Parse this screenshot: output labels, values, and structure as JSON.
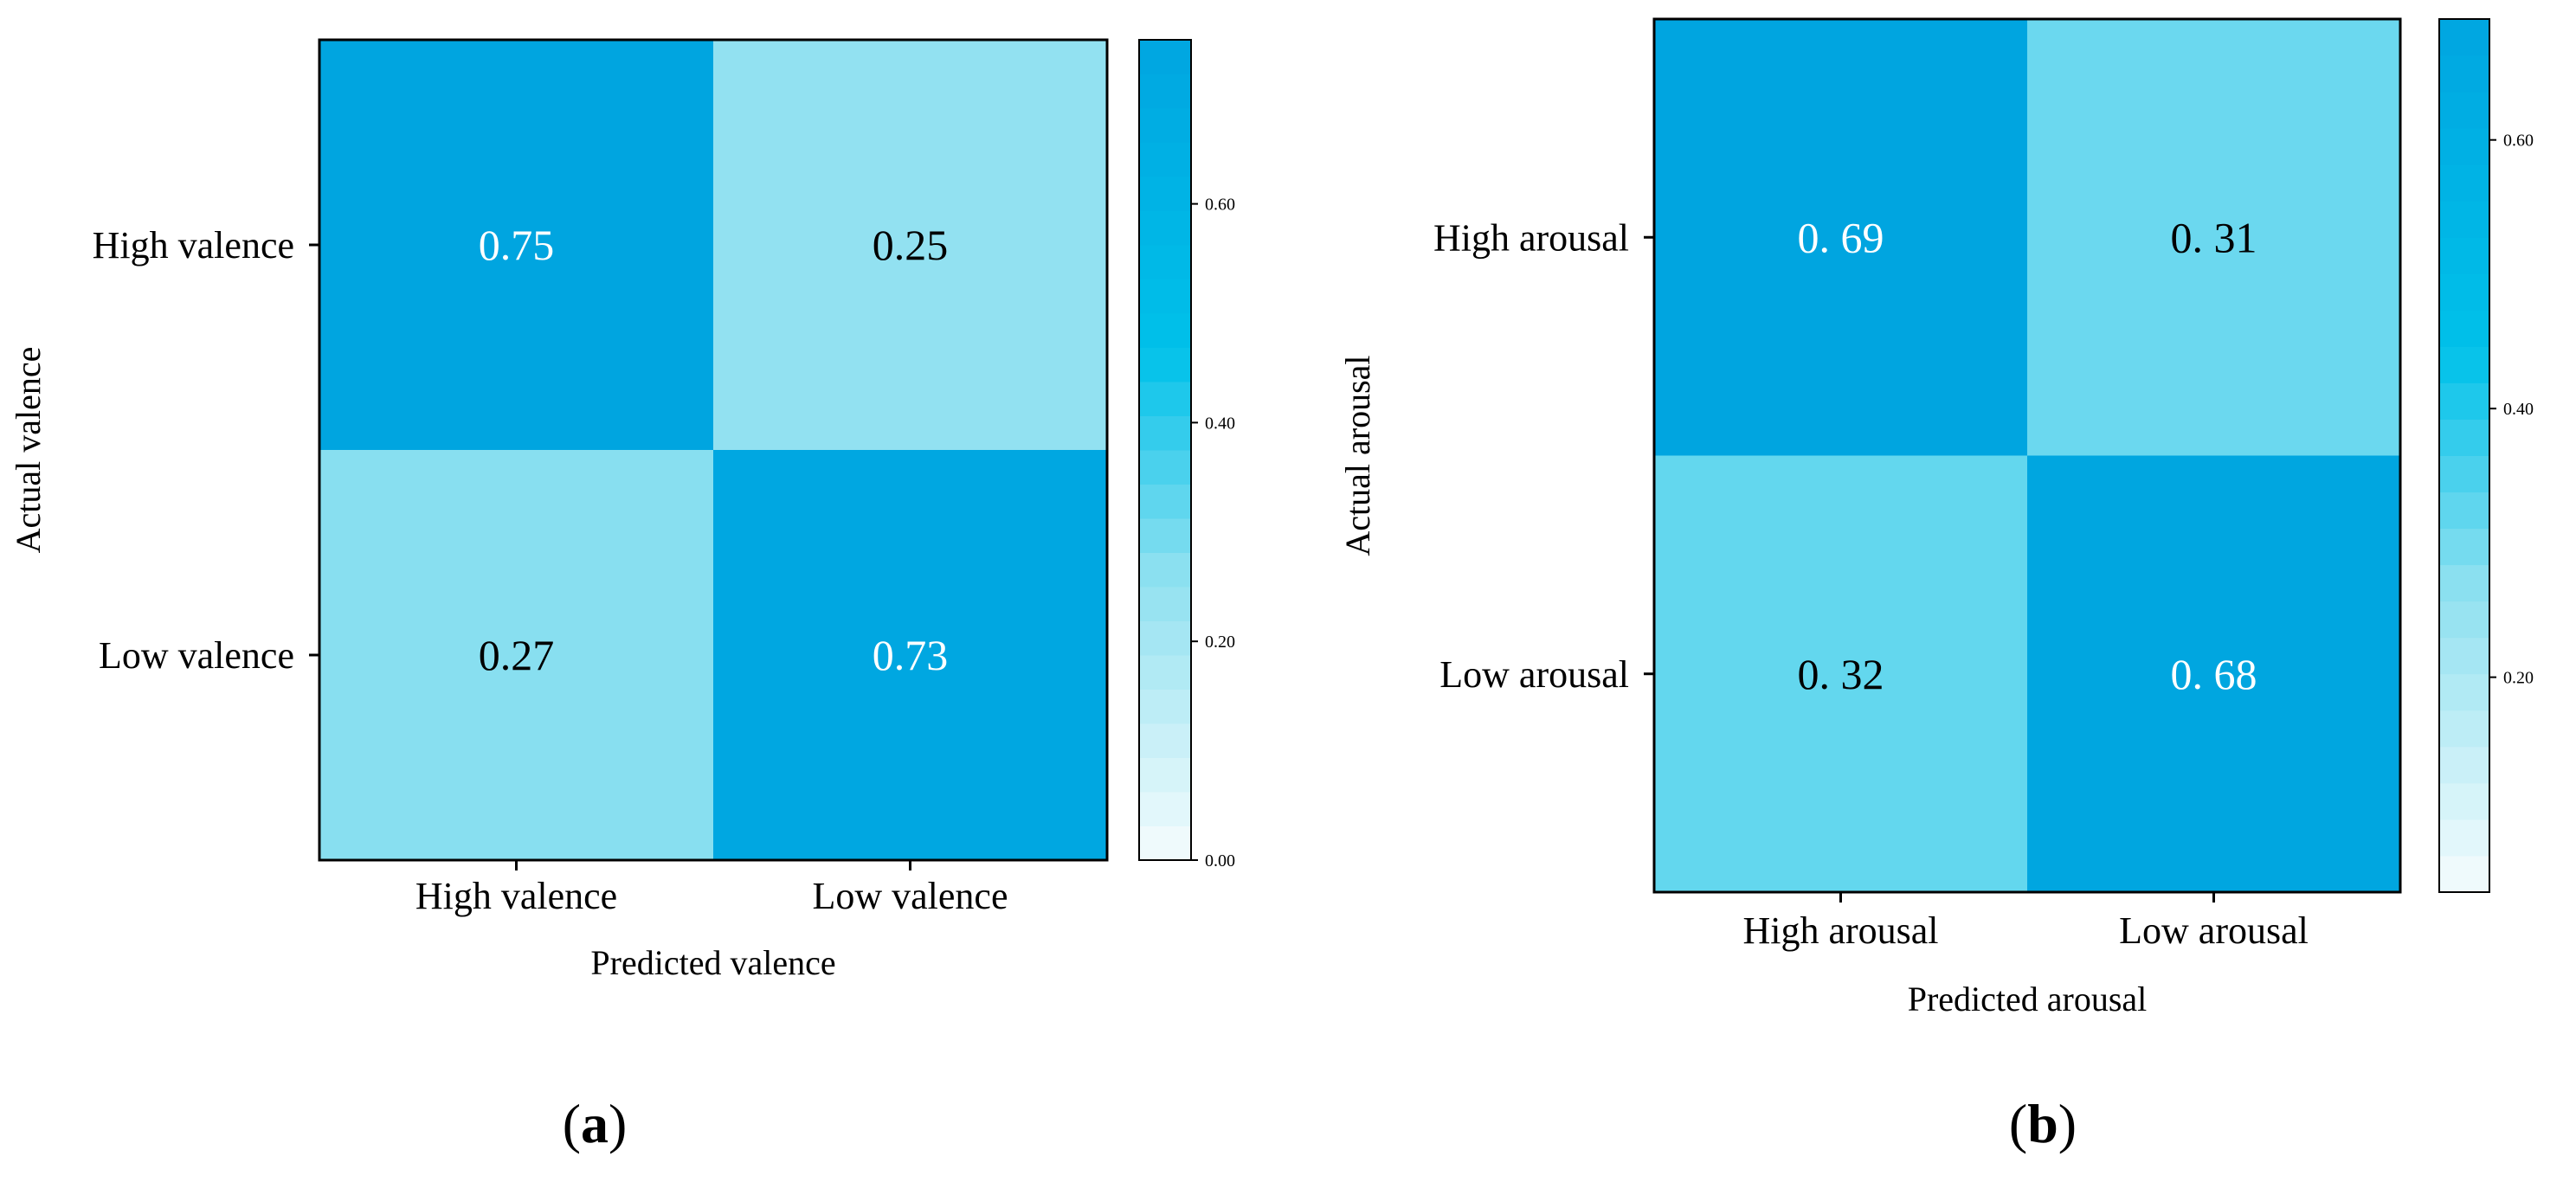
{
  "chart_data": [
    {
      "type": "heatmap",
      "panel_label": "(a)",
      "panel_letter": "a",
      "xlabel": "Predicted valence",
      "ylabel": "Actual valence",
      "x_categories": [
        "High valence",
        "Low valence"
      ],
      "y_categories": [
        "High valence",
        "Low valence"
      ],
      "values": [
        [
          0.75,
          0.25
        ],
        [
          0.27,
          0.73
        ]
      ],
      "cell_labels": [
        [
          "0.75",
          "0.25"
        ],
        [
          "0.27",
          "0.73"
        ]
      ],
      "colorbar": {
        "range": [
          0.0,
          0.75
        ],
        "ticks": [
          0.0,
          0.2,
          0.4,
          0.6
        ],
        "tick_labels": [
          "0.00",
          "0.20",
          "0.40",
          "0.60"
        ]
      }
    },
    {
      "type": "heatmap",
      "panel_label": "(b)",
      "panel_letter": "b",
      "xlabel": "Predicted arousal",
      "ylabel": "Actual arousal",
      "x_categories": [
        "High arousal",
        "Low arousal"
      ],
      "y_categories": [
        "High arousal",
        "Low arousal"
      ],
      "values": [
        [
          0.69,
          0.31
        ],
        [
          0.32,
          0.68
        ]
      ],
      "cell_labels": [
        [
          "0. 69",
          "0. 31"
        ],
        [
          "0. 32",
          "0. 68"
        ]
      ],
      "colorbar": {
        "range": [
          0.04,
          0.69
        ],
        "ticks": [
          0.2,
          0.4,
          0.6
        ],
        "tick_labels": [
          "0.20",
          "0.40",
          "0.60"
        ]
      }
    }
  ],
  "colors": {
    "high": "#00a5e0",
    "mid": "#00c1ea",
    "low_mid": "#8de0f0",
    "low": "#f5fcfd",
    "text_dark": "#000000",
    "text_light": "#ffffff"
  }
}
